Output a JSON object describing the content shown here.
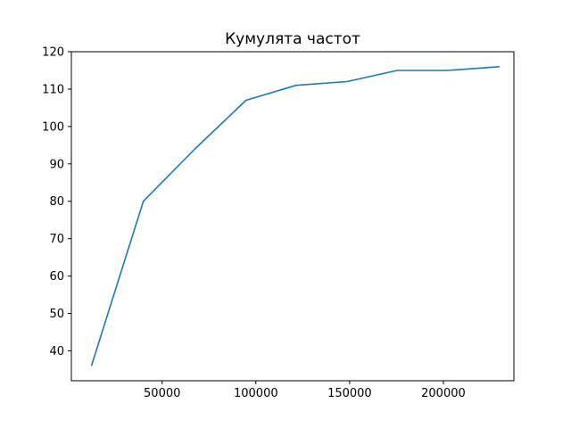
{
  "chart_data": {
    "type": "line",
    "title": "Кумулята частот",
    "xlabel": "",
    "ylabel": "",
    "xlim": [
      1600,
      237600
    ],
    "ylim": [
      32,
      120
    ],
    "x_ticks": [
      50000,
      100000,
      150000,
      200000
    ],
    "x_tick_labels": [
      "50000",
      "100000",
      "150000",
      "200000"
    ],
    "y_ticks": [
      40,
      50,
      60,
      70,
      80,
      90,
      100,
      110,
      120
    ],
    "y_tick_labels": [
      "40",
      "50",
      "60",
      "70",
      "80",
      "90",
      "100",
      "110",
      "120"
    ],
    "grid": false,
    "legend": false,
    "series": [
      {
        "color": "#1f77b4",
        "x": [
          12300,
          40000,
          67500,
          94700,
          121400,
          148600,
          175300,
          202200,
          229900
        ],
        "y": [
          36,
          80,
          94,
          107,
          111,
          112,
          115,
          115,
          116
        ]
      }
    ]
  }
}
